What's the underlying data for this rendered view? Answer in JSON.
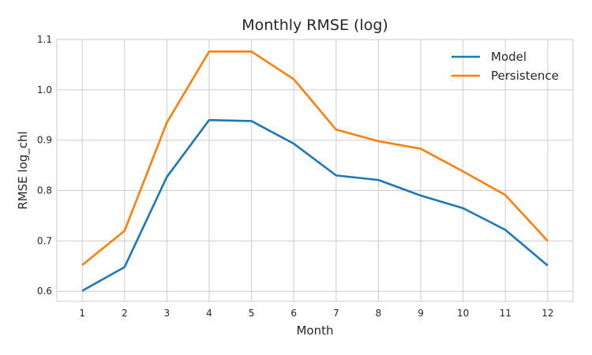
{
  "chart_data": {
    "type": "line",
    "title": "Monthly RMSE (log)",
    "xlabel": "Month",
    "ylabel": "RMSE log_chl",
    "x": [
      1,
      2,
      3,
      4,
      5,
      6,
      7,
      8,
      9,
      10,
      11,
      12
    ],
    "xlim": [
      0.4,
      12.6
    ],
    "ylim": [
      0.58,
      1.1
    ],
    "yticks": [
      0.6,
      0.7,
      0.8,
      0.9,
      1.0,
      1.1
    ],
    "ytick_labels": [
      "0.6",
      "0.7",
      "0.8",
      "0.9",
      "1.0",
      "1.1"
    ],
    "xtick_labels": [
      "1",
      "2",
      "3",
      "4",
      "5",
      "6",
      "7",
      "8",
      "9",
      "10",
      "11",
      "12"
    ],
    "grid": true,
    "legend_position": "top-right",
    "series": [
      {
        "name": "Model",
        "color": "#1f77b4",
        "values": [
          0.601,
          0.648,
          0.827,
          0.94,
          0.938,
          0.893,
          0.83,
          0.821,
          0.79,
          0.765,
          0.722,
          0.651
        ]
      },
      {
        "name": "Persistence",
        "color": "#ff7f0e",
        "values": [
          0.652,
          0.72,
          0.935,
          1.076,
          1.076,
          1.021,
          0.921,
          0.898,
          0.883,
          0.838,
          0.791,
          0.7
        ]
      }
    ]
  }
}
